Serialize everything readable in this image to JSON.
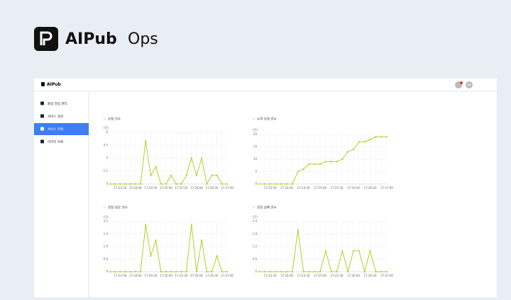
{
  "header": {
    "brand": "AIPub",
    "product": "Ops"
  },
  "app": {
    "logo": "AIPub",
    "avatar": "M",
    "menu": [
      "통합 알림 센터",
      "서비스 생성",
      "서비스 목록",
      "이미지 목록"
    ],
    "active_menu": 2
  },
  "chart_data": [
    {
      "type": "line",
      "title": "요청 건수",
      "y_label": "(건)",
      "color": "#b5cf2a",
      "grid": true,
      "categories": [
        null,
        null,
        "17:23:30",
        null,
        null,
        "17:24:00",
        null,
        null,
        "17:24:30",
        null,
        null,
        "17:25:00",
        null,
        null,
        "17:25:30",
        null,
        null,
        "17:26:00",
        null,
        null,
        "17:26:30",
        null,
        null,
        "17:27:00"
      ],
      "values": [
        0,
        0,
        0,
        0,
        0,
        0,
        0,
        5,
        1,
        2,
        0,
        0,
        1,
        0,
        0,
        1,
        3,
        1,
        3,
        0,
        1,
        1,
        0,
        0
      ],
      "ylim": [
        0,
        6
      ],
      "yticks": [
        0,
        1.5,
        3,
        4.5,
        6
      ]
    },
    {
      "type": "line",
      "title": "누적 요청 건수",
      "y_label": "(건)",
      "color": "#b5cf2a",
      "grid": true,
      "categories": [
        null,
        null,
        "17:23:30",
        null,
        null,
        "17:24:00",
        null,
        null,
        "17:24:30",
        null,
        null,
        "17:25:00",
        null,
        null,
        "17:25:30",
        null,
        null,
        "17:26:00",
        null,
        null,
        "17:26:30",
        null,
        null,
        "17:27:00"
      ],
      "values": [
        0,
        0,
        0,
        0,
        0,
        0,
        0,
        5,
        6,
        8,
        8,
        8,
        9,
        9,
        9,
        10,
        13,
        14,
        17,
        17,
        18,
        19,
        19,
        19
      ],
      "ylim": [
        0,
        20
      ],
      "yticks": [
        0,
        5,
        10,
        15,
        20
      ]
    },
    {
      "type": "line",
      "title": "응답 성공 건수",
      "y_label": "(건)",
      "color": "#b5cf2a",
      "grid": true,
      "categories": [
        null,
        null,
        "17:23:30",
        null,
        null,
        "17:24:00",
        null,
        null,
        "17:24:30",
        null,
        null,
        "17:25:00",
        null,
        null,
        "17:25:30",
        null,
        null,
        "17:26:00",
        null,
        null,
        "17:26:30",
        null,
        null,
        "17:27:00"
      ],
      "values": [
        0,
        0,
        0,
        0,
        0,
        0,
        0,
        3,
        1,
        2,
        0,
        0,
        0,
        0,
        0,
        0,
        3,
        0,
        2,
        0,
        0,
        1,
        0,
        0
      ],
      "ylim": [
        0,
        3.2
      ],
      "yticks": [
        0,
        0.8,
        1.6,
        2.4,
        3.2
      ]
    },
    {
      "type": "line",
      "title": "응답 실패 건수",
      "y_label": "(건)",
      "color": "#b5cf2a",
      "grid": true,
      "categories": [
        null,
        null,
        "17:23:30",
        null,
        null,
        "17:24:00",
        null,
        null,
        "17:24:30",
        null,
        null,
        "17:25:00",
        null,
        null,
        "17:25:30",
        null,
        null,
        "17:26:00",
        null,
        null,
        "17:26:30",
        null,
        null,
        "17:27:00"
      ],
      "values": [
        0,
        0,
        0,
        0,
        0,
        0,
        0,
        2,
        0,
        0,
        0,
        0,
        1,
        0,
        0,
        1,
        0,
        1,
        1,
        0,
        1,
        0,
        0,
        0
      ],
      "ylim": [
        0,
        2.4
      ],
      "yticks": [
        0,
        0.6,
        1.2,
        1.8,
        2.4
      ]
    }
  ]
}
